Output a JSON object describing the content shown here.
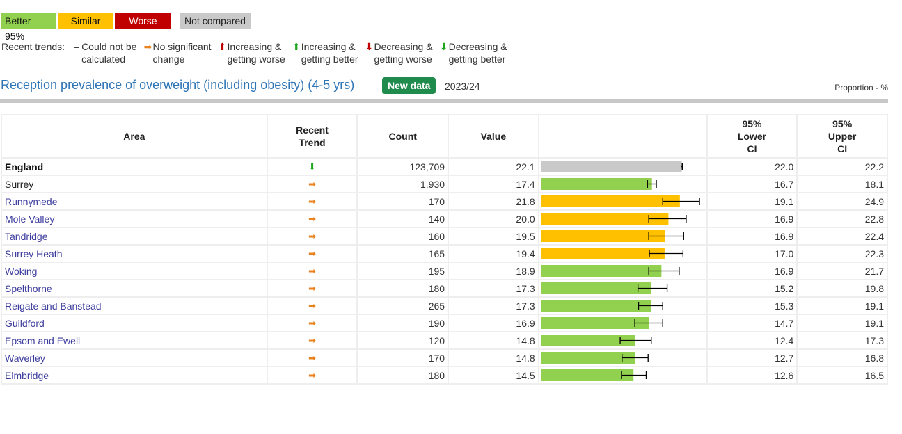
{
  "legend": {
    "better": "Better 95%",
    "similar": "Similar",
    "worse": "Worse 95%",
    "not_compared": "Not compared"
  },
  "trends_legend": {
    "label": "Recent trends:",
    "items": [
      {
        "icon": "dash-icon",
        "glyph": "–",
        "color": "#333333",
        "line1": "Could not be",
        "line2": "calculated"
      },
      {
        "icon": "arrow-right-icon",
        "glyph": "➡",
        "color": "#e8821e",
        "line1": "No significant",
        "line2": "change"
      },
      {
        "icon": "arrow-up-red-icon",
        "glyph": "⬆",
        "color": "#c00000",
        "line1": "Increasing &",
        "line2": "getting worse"
      },
      {
        "icon": "arrow-up-green-icon",
        "glyph": "⬆",
        "color": "#1ea51e",
        "line1": "Increasing &",
        "line2": "getting better"
      },
      {
        "icon": "arrow-down-red-icon",
        "glyph": "⬇",
        "color": "#c00000",
        "line1": "Decreasing &",
        "line2": "getting worse"
      },
      {
        "icon": "arrow-down-green-icon",
        "glyph": "⬇",
        "color": "#1ea51e",
        "line1": "Decreasing &",
        "line2": "getting better"
      }
    ]
  },
  "indicator": {
    "title": "Reception prevalence of overweight (including obesity) (4-5 yrs)",
    "badge": "New data",
    "period": "2023/24",
    "unit": "Proportion - %"
  },
  "table": {
    "headers": {
      "area": "Area",
      "trend_l1": "Recent",
      "trend_l2": "Trend",
      "count": "Count",
      "value": "Value",
      "lci_l1": "95%",
      "lci_l2": "Lower",
      "lci_l3": "CI",
      "uci_l1": "95%",
      "uci_l2": "Upper",
      "uci_l3": "CI"
    },
    "scale_max": 25,
    "colors": {
      "benchmark": "#c9c9c9",
      "similar": "#ffc000",
      "better": "#92d050",
      "trend_none": "#e8821e",
      "trend_down_better": "#1ea51e"
    },
    "rows": [
      {
        "area": "England",
        "kind": "eng",
        "trend": "down-better",
        "count": "123,709",
        "value": 22.1,
        "value_text": "22.1",
        "lci": 22.0,
        "lci_text": "22.0",
        "uci": 22.2,
        "uci_text": "22.2",
        "status": "benchmark"
      },
      {
        "area": "Surrey",
        "kind": "plain",
        "trend": "none",
        "count": "1,930",
        "value": 17.4,
        "value_text": "17.4",
        "lci": 16.7,
        "lci_text": "16.7",
        "uci": 18.1,
        "uci_text": "18.1",
        "status": "better"
      },
      {
        "area": "Runnymede",
        "kind": "link",
        "trend": "none",
        "count": "170",
        "value": 21.8,
        "value_text": "21.8",
        "lci": 19.1,
        "lci_text": "19.1",
        "uci": 24.9,
        "uci_text": "24.9",
        "status": "similar"
      },
      {
        "area": "Mole Valley",
        "kind": "link",
        "trend": "none",
        "count": "140",
        "value": 20.0,
        "value_text": "20.0",
        "lci": 16.9,
        "lci_text": "16.9",
        "uci": 22.8,
        "uci_text": "22.8",
        "status": "similar"
      },
      {
        "area": "Tandridge",
        "kind": "link",
        "trend": "none",
        "count": "160",
        "value": 19.5,
        "value_text": "19.5",
        "lci": 16.9,
        "lci_text": "16.9",
        "uci": 22.4,
        "uci_text": "22.4",
        "status": "similar"
      },
      {
        "area": "Surrey Heath",
        "kind": "link",
        "trend": "none",
        "count": "165",
        "value": 19.4,
        "value_text": "19.4",
        "lci": 17.0,
        "lci_text": "17.0",
        "uci": 22.3,
        "uci_text": "22.3",
        "status": "similar"
      },
      {
        "area": "Woking",
        "kind": "link",
        "trend": "none",
        "count": "195",
        "value": 18.9,
        "value_text": "18.9",
        "lci": 16.9,
        "lci_text": "16.9",
        "uci": 21.7,
        "uci_text": "21.7",
        "status": "better"
      },
      {
        "area": "Spelthorne",
        "kind": "link",
        "trend": "none",
        "count": "180",
        "value": 17.3,
        "value_text": "17.3",
        "lci": 15.2,
        "lci_text": "15.2",
        "uci": 19.8,
        "uci_text": "19.8",
        "status": "better"
      },
      {
        "area": "Reigate and Banstead",
        "kind": "link",
        "trend": "none",
        "count": "265",
        "value": 17.3,
        "value_text": "17.3",
        "lci": 15.3,
        "lci_text": "15.3",
        "uci": 19.1,
        "uci_text": "19.1",
        "status": "better"
      },
      {
        "area": "Guildford",
        "kind": "link",
        "trend": "none",
        "count": "190",
        "value": 16.9,
        "value_text": "16.9",
        "lci": 14.7,
        "lci_text": "14.7",
        "uci": 19.1,
        "uci_text": "19.1",
        "status": "better"
      },
      {
        "area": "Epsom and Ewell",
        "kind": "link",
        "trend": "none",
        "count": "120",
        "value": 14.8,
        "value_text": "14.8",
        "lci": 12.4,
        "lci_text": "12.4",
        "uci": 17.3,
        "uci_text": "17.3",
        "status": "better"
      },
      {
        "area": "Waverley",
        "kind": "link",
        "trend": "none",
        "count": "170",
        "value": 14.8,
        "value_text": "14.8",
        "lci": 12.7,
        "lci_text": "12.7",
        "uci": 16.8,
        "uci_text": "16.8",
        "status": "better"
      },
      {
        "area": "Elmbridge",
        "kind": "link",
        "trend": "none",
        "count": "180",
        "value": 14.5,
        "value_text": "14.5",
        "lci": 12.6,
        "lci_text": "12.6",
        "uci": 16.5,
        "uci_text": "16.5",
        "status": "better"
      }
    ]
  }
}
